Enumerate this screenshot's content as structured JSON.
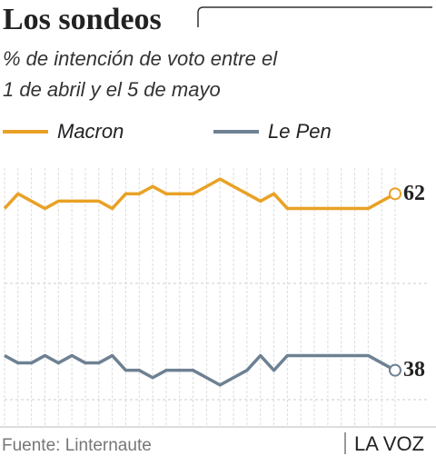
{
  "chart_data": {
    "type": "line",
    "title": "Los sondeos",
    "subtitle": [
      "% de intención de voto entre el",
      "1 de abril y el 5 de mayo"
    ],
    "categories": [
      null,
      null,
      null,
      null,
      null,
      null,
      null,
      null,
      null,
      null,
      null,
      null,
      null,
      null,
      null,
      null,
      null,
      null,
      null,
      null,
      null,
      null,
      null,
      null,
      null,
      null,
      null,
      null,
      null,
      null
    ],
    "series": [
      {
        "name": "Macron",
        "color": "#e9a125",
        "values": [
          60,
          62,
          61,
          60,
          61,
          61,
          61,
          61,
          60,
          62,
          62,
          63,
          62,
          62,
          62,
          63,
          64,
          63,
          62,
          61,
          62,
          60,
          60,
          60,
          60,
          60,
          60,
          60,
          61,
          62
        ]
      },
      {
        "name": "Le Pen",
        "color": "#6e8193",
        "values": [
          40,
          39,
          39,
          40,
          39,
          40,
          39,
          39,
          40,
          38,
          38,
          37,
          38,
          38,
          38,
          37,
          36,
          37,
          38,
          40,
          38,
          40,
          40,
          40,
          40,
          40,
          40,
          40,
          39,
          38
        ]
      }
    ],
    "ylim": [
      30.3,
      65.5
    ],
    "source": "Fuente: Linternaute",
    "brand": "LA VOZ"
  }
}
